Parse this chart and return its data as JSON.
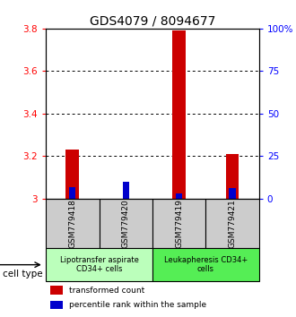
{
  "title": "GDS4079 / 8094677",
  "samples": [
    "GSM779418",
    "GSM779420",
    "GSM779419",
    "GSM779421"
  ],
  "red_values": [
    3.23,
    3.0,
    3.79,
    3.21
  ],
  "blue_percentiles": [
    7,
    10,
    3,
    6
  ],
  "ylim": [
    3.0,
    3.8
  ],
  "yticks_left": [
    3.0,
    3.2,
    3.4,
    3.6,
    3.8
  ],
  "yticks_right": [
    0,
    25,
    50,
    75,
    100
  ],
  "ytick_labels_left": [
    "3",
    "3.2",
    "3.4",
    "3.6",
    "3.8"
  ],
  "ytick_labels_right": [
    "0",
    "25",
    "50",
    "75",
    "100%"
  ],
  "grid_yticks": [
    3.2,
    3.4,
    3.6
  ],
  "groups": [
    {
      "label": "Lipotransfer aspirate\nCD34+ cells",
      "color": "#bbffbb",
      "start": 0,
      "end": 2
    },
    {
      "label": "Leukapheresis CD34+\ncells",
      "color": "#55ee55",
      "start": 2,
      "end": 4
    }
  ],
  "red_bar_width": 0.25,
  "blue_bar_width": 0.12,
  "red_color": "#cc0000",
  "blue_color": "#0000cc",
  "cell_type_label": "cell type",
  "legend_red": "transformed count",
  "legend_blue": "percentile rank within the sample",
  "sample_box_color": "#cccccc",
  "title_fontsize": 10,
  "tick_fontsize": 7.5,
  "label_fontsize": 6.5
}
